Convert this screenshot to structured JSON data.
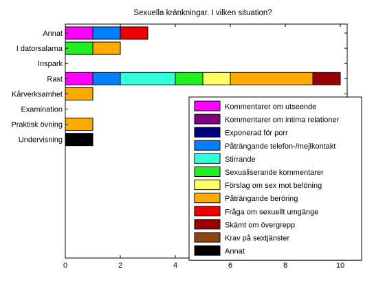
{
  "chart_data": {
    "type": "bar",
    "orientation": "horizontal",
    "stacked": true,
    "title": "Sexuella kränkningar. I vilken situation?",
    "xlabel": "",
    "ylabel": "",
    "xlim": [
      0,
      10.25
    ],
    "xticks": [
      0,
      2,
      4,
      6,
      8,
      10
    ],
    "categories": [
      "Annat",
      "I datorsalarna",
      "Inspark",
      "Rast",
      "Kårverksamhet",
      "Examination",
      "Praktisk övning",
      "Undervisning"
    ],
    "legend_position": "lower-right",
    "grid": false,
    "series": [
      {
        "name": "Kommentarer om utseende",
        "color": "#ff00ff",
        "values": [
          1,
          0,
          0,
          1,
          0,
          0,
          0,
          0
        ]
      },
      {
        "name": "Kommentarer om intima relationer",
        "color": "#800080",
        "values": [
          0,
          0,
          0,
          0,
          0,
          0,
          0,
          0
        ]
      },
      {
        "name": "Exponerad för porr",
        "color": "#000080",
        "values": [
          0,
          0,
          0,
          0,
          0,
          0,
          0,
          0
        ]
      },
      {
        "name": "Påträngande telefon-/mejlkontakt",
        "color": "#0080ff",
        "values": [
          1,
          0,
          0,
          1,
          0,
          0,
          0,
          0
        ]
      },
      {
        "name": "Stirrande",
        "color": "#33ffdd",
        "values": [
          0,
          0,
          0,
          2,
          0,
          0,
          0,
          0
        ]
      },
      {
        "name": "Sexualiserande kommentarer",
        "color": "#22ee22",
        "values": [
          0,
          1,
          0,
          1,
          0,
          0,
          0,
          0
        ]
      },
      {
        "name": "Förslag om sex mot belöning",
        "color": "#ffff66",
        "values": [
          0,
          0,
          0,
          1,
          0,
          0,
          0,
          0
        ]
      },
      {
        "name": "Påträngande beröring",
        "color": "#ffaa00",
        "values": [
          0,
          1,
          0,
          3,
          1,
          0,
          1,
          0
        ]
      },
      {
        "name": "Fråga om sexuellt umgänge",
        "color": "#ee0000",
        "values": [
          1,
          0,
          0,
          0,
          0,
          0,
          0,
          0
        ]
      },
      {
        "name": "Skämt om övergrepp",
        "color": "#990000",
        "values": [
          0,
          0,
          0,
          1,
          0,
          0,
          0,
          0
        ]
      },
      {
        "name": "Krav på sextjänster",
        "color": "#8b4513",
        "values": [
          0,
          0,
          0,
          0,
          0,
          0,
          0,
          0
        ]
      },
      {
        "name": "Annat",
        "color": "#000000",
        "values": [
          0,
          0,
          0,
          0,
          0,
          0,
          0,
          1
        ]
      }
    ]
  }
}
